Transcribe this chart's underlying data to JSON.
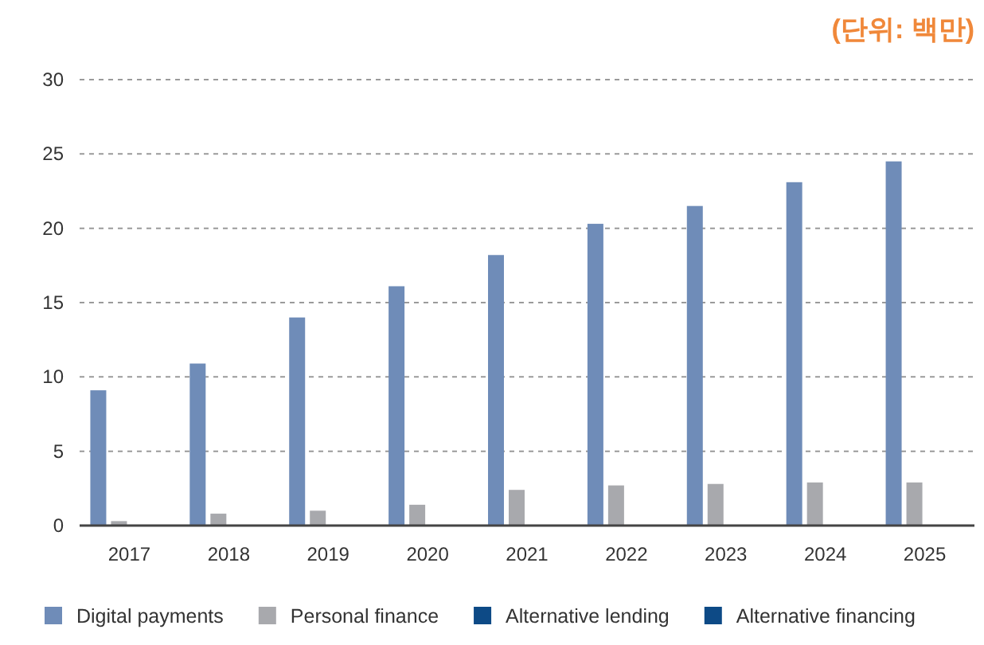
{
  "chart_data": {
    "type": "bar",
    "annotations": [
      "(단위: 백만)"
    ],
    "categories": [
      "2017",
      "2018",
      "2019",
      "2020",
      "2021",
      "2022",
      "2023",
      "2024",
      "2025"
    ],
    "series": [
      {
        "name": "Digital payments",
        "color": "#6f8cb8",
        "values": [
          9.1,
          10.9,
          14.0,
          16.1,
          18.2,
          20.3,
          21.5,
          23.1,
          24.5
        ]
      },
      {
        "name": "Personal finance",
        "color": "#a8a9ad",
        "values": [
          0.3,
          0.8,
          1.0,
          1.4,
          2.4,
          2.7,
          2.8,
          2.9,
          2.9
        ]
      },
      {
        "name": "Alternative lending",
        "color": "#0d4a86",
        "values": [
          0,
          0,
          0,
          0,
          0,
          0,
          0,
          0,
          0
        ]
      },
      {
        "name": "Alternative financing",
        "color": "#0d4a86",
        "values": [
          0,
          0,
          0,
          0,
          0,
          0,
          0,
          0,
          0
        ]
      }
    ],
    "ylim": [
      0,
      30
    ],
    "yticks": [
      0,
      5,
      10,
      15,
      20,
      25,
      30
    ],
    "grid": "y",
    "legend": "bottom"
  }
}
